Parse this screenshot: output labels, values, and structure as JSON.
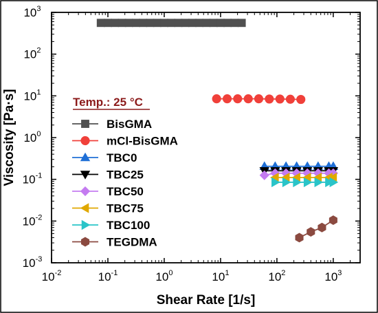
{
  "chart_data": {
    "type": "scatter",
    "xlabel": "Shear Rate [1/s]",
    "ylabel": "Viscosity [Pa·s]",
    "x_scale": "log",
    "y_scale": "log",
    "xlim": [
      0.01,
      3000
    ],
    "ylim": [
      0.001,
      1000
    ],
    "x_ticks": [
      {
        "base": "10",
        "exp": "-2",
        "value": 0.01
      },
      {
        "base": "10",
        "exp": "-1",
        "value": 0.1
      },
      {
        "base": "10",
        "exp": "0",
        "value": 1
      },
      {
        "base": "10",
        "exp": "1",
        "value": 10
      },
      {
        "base": "10",
        "exp": "2",
        "value": 100
      },
      {
        "base": "10",
        "exp": "3",
        "value": 1000
      }
    ],
    "y_ticks": [
      {
        "base": "10",
        "exp": "-3",
        "value": 0.001
      },
      {
        "base": "10",
        "exp": "-2",
        "value": 0.01
      },
      {
        "base": "10",
        "exp": "-1",
        "value": 0.1
      },
      {
        "base": "10",
        "exp": "0",
        "value": 1
      },
      {
        "base": "10",
        "exp": "1",
        "value": 10
      },
      {
        "base": "10",
        "exp": "2",
        "value": 100
      },
      {
        "base": "10",
        "exp": "3",
        "value": 1000
      }
    ],
    "grid": false,
    "legend_position": "left",
    "annotation": {
      "text": "Temp.: 25 °C",
      "color": "#8b1a1a"
    },
    "series": [
      {
        "name": "BisGMA",
        "color": "#505050",
        "marker": "square",
        "x": [
          0.075,
          0.1,
          0.133,
          0.178,
          0.237,
          0.316,
          0.422,
          0.562,
          0.75,
          1.0,
          1.33,
          1.78,
          2.37,
          3.16,
          4.22,
          5.62,
          7.5,
          10,
          13.3,
          17.8,
          23.7
        ],
        "y": [
          560,
          560,
          560,
          560,
          560,
          560,
          560,
          560,
          560,
          560,
          560,
          560,
          560,
          560,
          560,
          560,
          560,
          560,
          560,
          560,
          560
        ]
      },
      {
        "name": "mCl-BisGMA",
        "color": "#f0403a",
        "marker": "circle",
        "x": [
          8.5,
          13.1,
          20.1,
          31,
          47.6,
          73.3,
          113,
          173,
          266
        ],
        "y": [
          8.5,
          8.5,
          8.5,
          8.5,
          8.5,
          8.4,
          8.4,
          8.3,
          8.2
        ]
      },
      {
        "name": "TBC0",
        "color": "#1f6fd6",
        "marker": "triangle-up",
        "x": [
          60,
          93,
          145,
          224,
          347,
          538,
          834,
          1000
        ],
        "y": [
          0.205,
          0.205,
          0.205,
          0.205,
          0.205,
          0.205,
          0.205,
          0.205
        ]
      },
      {
        "name": "TBC25",
        "color": "#000000",
        "marker": "triangle-down",
        "x": [
          60,
          93,
          145,
          224,
          347,
          538,
          834,
          1000
        ],
        "y": [
          0.16,
          0.16,
          0.16,
          0.16,
          0.16,
          0.16,
          0.16,
          0.16
        ]
      },
      {
        "name": "TBC50",
        "color": "#c47bf0",
        "marker": "diamond",
        "x": [
          60,
          93,
          145,
          224,
          347,
          538,
          834,
          1000
        ],
        "y": [
          0.125,
          0.14,
          0.14,
          0.14,
          0.14,
          0.14,
          0.14,
          0.14
        ]
      },
      {
        "name": "TBC75",
        "color": "#e0a800",
        "marker": "triangle-left",
        "x": [
          93,
          145,
          224,
          347,
          538,
          834,
          1000
        ],
        "y": [
          0.11,
          0.11,
          0.11,
          0.11,
          0.11,
          0.11,
          0.11
        ]
      },
      {
        "name": "TBC100",
        "color": "#2ac4c8",
        "marker": "triangle-right",
        "x": [
          93,
          145,
          224,
          347,
          538,
          834,
          1000
        ],
        "y": [
          0.085,
          0.085,
          0.085,
          0.085,
          0.085,
          0.085,
          0.085
        ]
      },
      {
        "name": "TEGDMA",
        "color": "#8b4a40",
        "marker": "hexagon",
        "x": [
          250,
          400,
          630,
          1000
        ],
        "y": [
          0.004,
          0.0055,
          0.007,
          0.0105
        ]
      }
    ]
  }
}
